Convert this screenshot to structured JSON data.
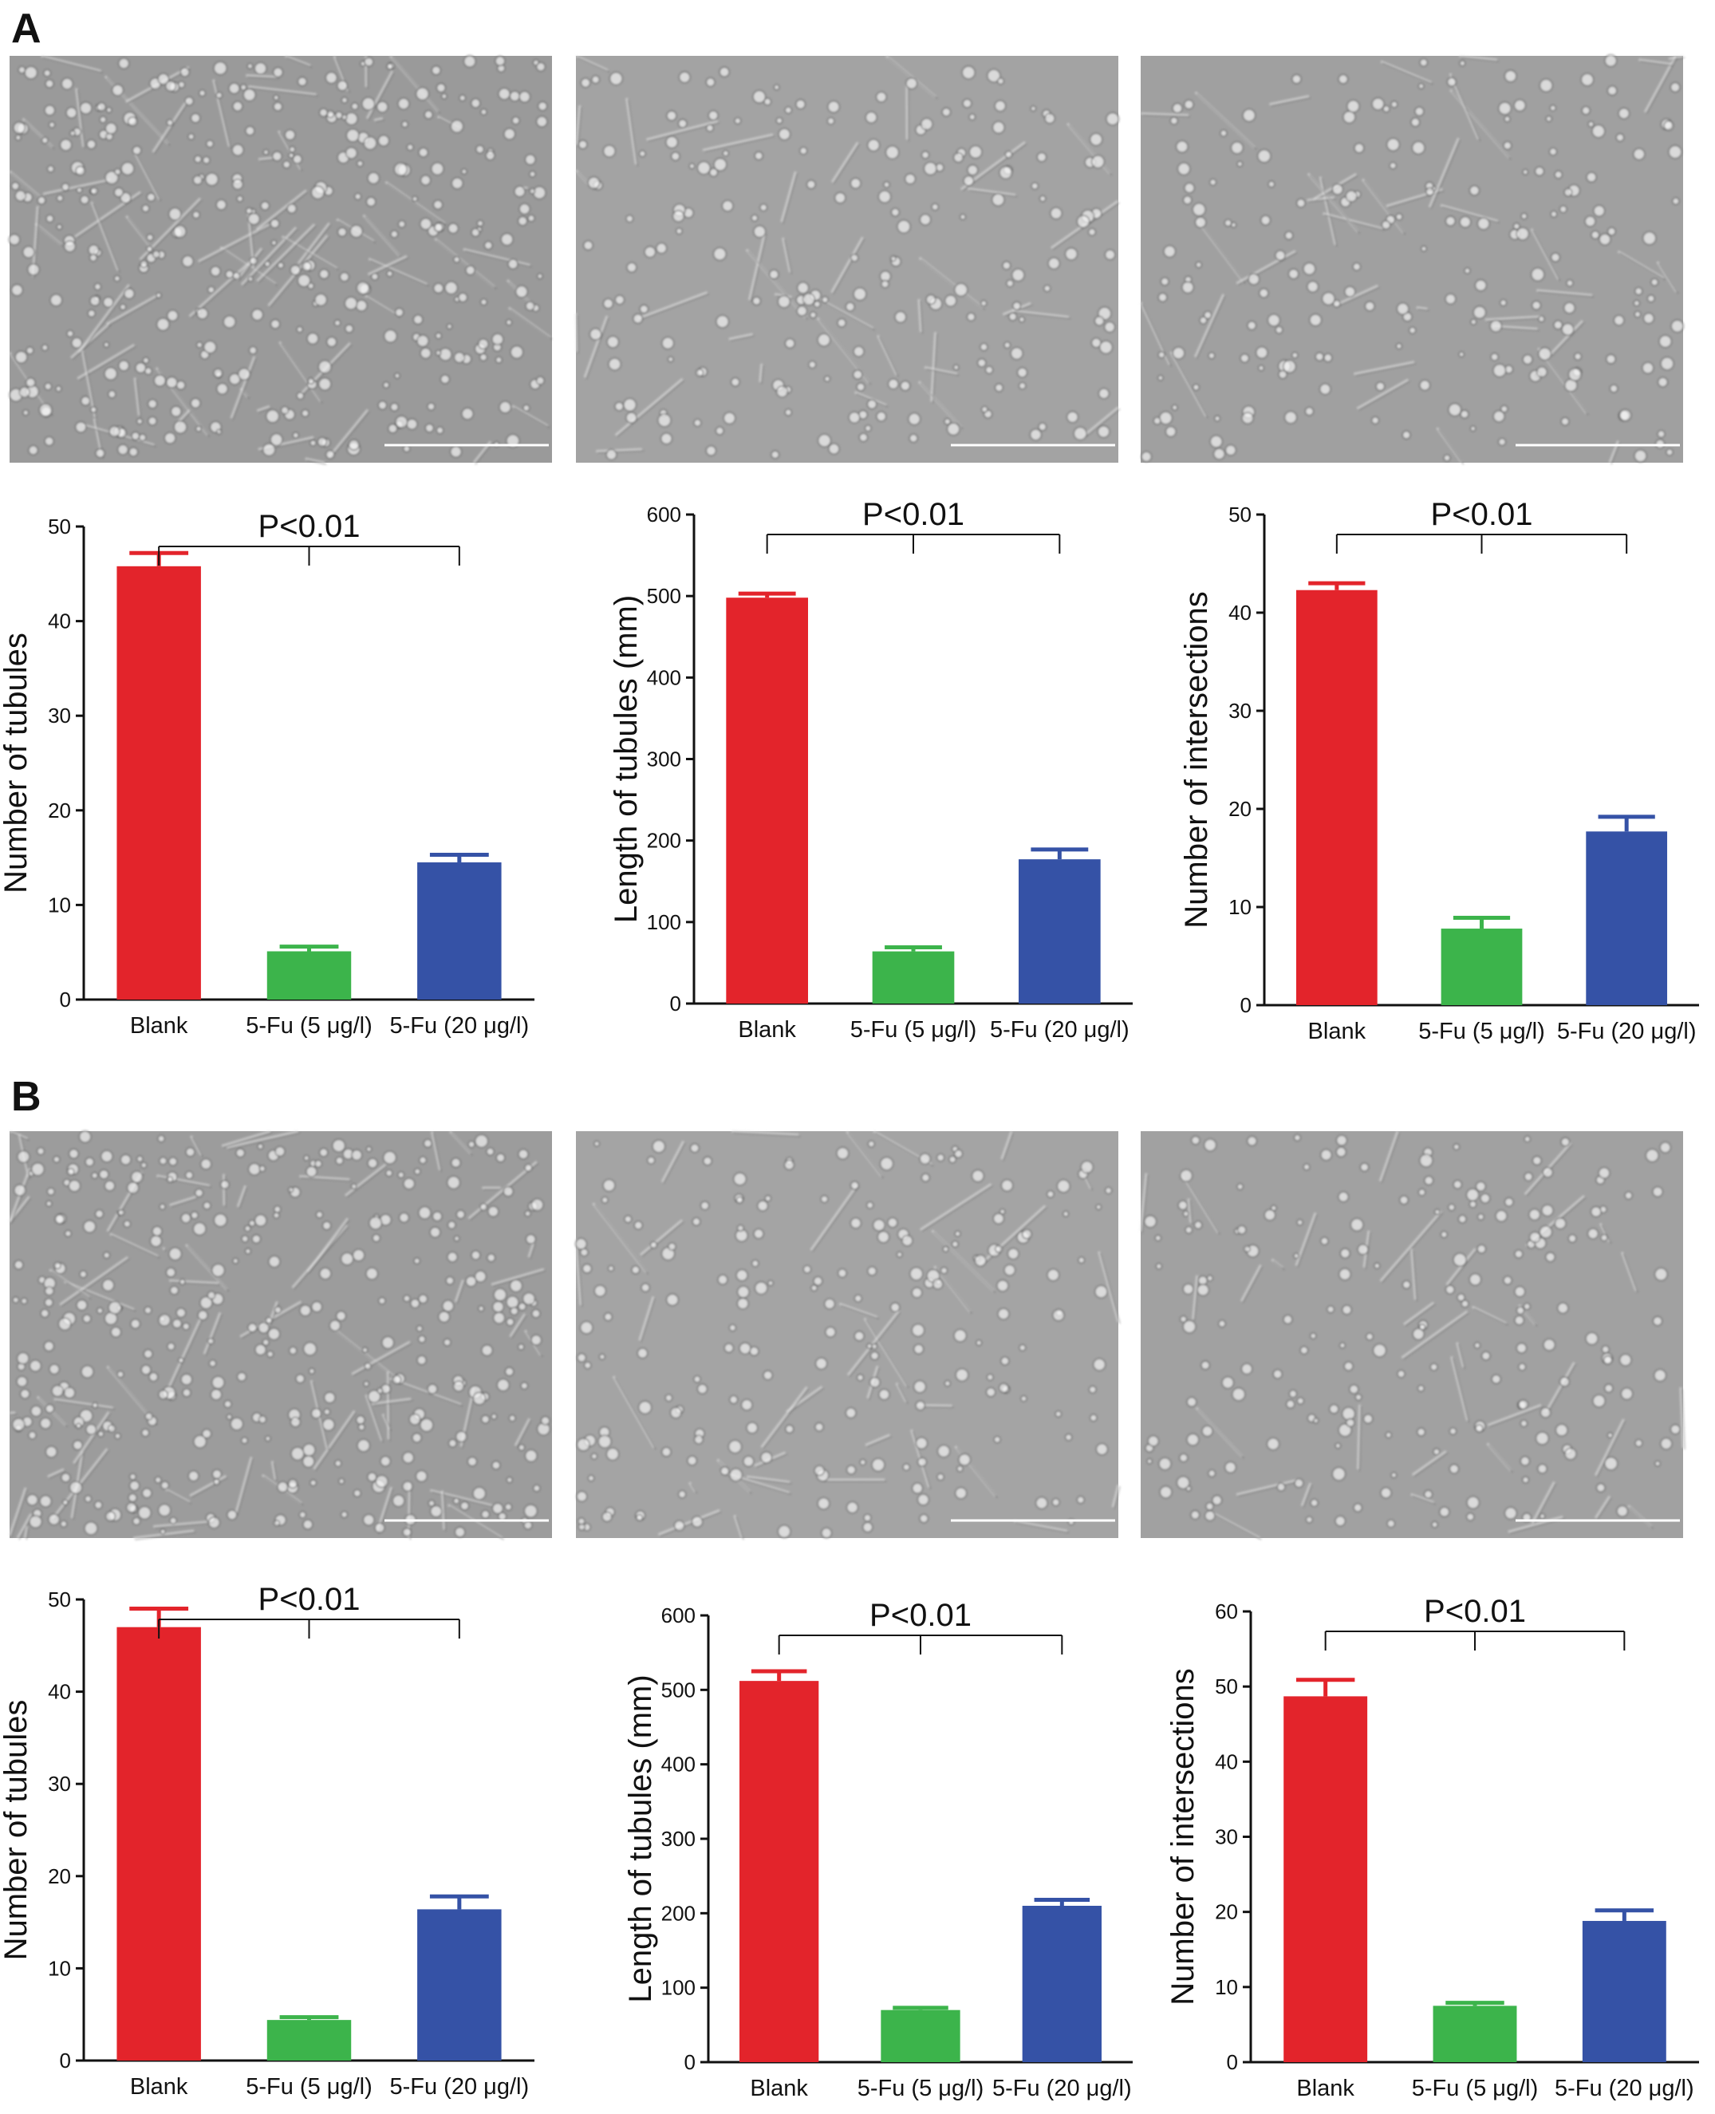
{
  "panels": [
    {
      "letter": "A",
      "images": [
        {
          "name": "micrograph-a-blank",
          "tone": "#9a9a9a"
        },
        {
          "name": "micrograph-a-5fu-5",
          "tone": "#a3a3a3"
        },
        {
          "name": "micrograph-a-5fu-20",
          "tone": "#a0a0a0"
        }
      ]
    },
    {
      "letter": "B",
      "images": [
        {
          "name": "micrograph-b-blank",
          "tone": "#9c9c9c"
        },
        {
          "name": "micrograph-b-5fu-5",
          "tone": "#a4a4a4"
        },
        {
          "name": "micrograph-b-5fu-20",
          "tone": "#a1a1a1"
        }
      ]
    }
  ],
  "colors": {
    "blank": "#e3242b",
    "low": "#3cb44b",
    "high": "#3552a6"
  },
  "chart_data": [
    {
      "type": "bar",
      "panel": "A",
      "categories": [
        "Blank",
        "5-Fu (5 μg/l)",
        "5-Fu (20 μg/l)"
      ],
      "values": [
        45.8,
        5.1,
        14.5
      ],
      "errors": [
        1.4,
        0.5,
        0.8
      ],
      "ylabel": "Number of tubules",
      "ylim": [
        0,
        50
      ],
      "yticks": [
        "0",
        "10",
        "20",
        "30",
        "40",
        "50"
      ],
      "annotation": "P<0.01"
    },
    {
      "type": "bar",
      "panel": "A",
      "categories": [
        "Blank",
        "5-Fu (5 μg/l)",
        "5-Fu (20 μg/l)"
      ],
      "values": [
        498,
        64,
        177
      ],
      "errors": [
        5,
        5,
        12
      ],
      "ylabel": "Length of tubules (mm)",
      "ylim": [
        0,
        600
      ],
      "yticks": [
        "0",
        "100",
        "200",
        "300",
        "400",
        "500",
        "600"
      ],
      "annotation": "P<0.01"
    },
    {
      "type": "bar",
      "panel": "A",
      "categories": [
        "Blank",
        "5-Fu (5 μg/l)",
        "5-Fu (20 μg/l)"
      ],
      "values": [
        42.3,
        7.8,
        17.7
      ],
      "errors": [
        0.7,
        1.1,
        1.5
      ],
      "ylabel": "Number of intersections",
      "ylim": [
        0,
        50
      ],
      "yticks": [
        "0",
        "10",
        "20",
        "30",
        "40",
        "50"
      ],
      "annotation": "P<0.01"
    },
    {
      "type": "bar",
      "panel": "B",
      "categories": [
        "Blank",
        "5-Fu (5 μg/l)",
        "5-Fu (20 μg/l)"
      ],
      "values": [
        47.0,
        4.4,
        16.4
      ],
      "errors": [
        2.0,
        0.3,
        1.4
      ],
      "ylabel": "Number of tubules",
      "ylim": [
        0,
        50
      ],
      "yticks": [
        "0",
        "10",
        "20",
        "30",
        "40",
        "50"
      ],
      "annotation": "P<0.01"
    },
    {
      "type": "bar",
      "panel": "B",
      "categories": [
        "Blank",
        "5-Fu (5 μg/l)",
        "5-Fu (20 μg/l)"
      ],
      "values": [
        512,
        70,
        210
      ],
      "errors": [
        13,
        3,
        8
      ],
      "ylabel": "Length of tubules (mm)",
      "ylim": [
        0,
        600
      ],
      "yticks": [
        "0",
        "100",
        "200",
        "300",
        "400",
        "500",
        "600"
      ],
      "annotation": "P<0.01"
    },
    {
      "type": "bar",
      "panel": "B",
      "categories": [
        "Blank",
        "5-Fu (5 μg/l)",
        "5-Fu (20 μg/l)"
      ],
      "values": [
        48.7,
        7.5,
        18.8
      ],
      "errors": [
        2.2,
        0.4,
        1.4
      ],
      "ylabel": "Number of intersections",
      "ylim": [
        0,
        60
      ],
      "yticks": [
        "0",
        "10",
        "20",
        "30",
        "40",
        "50",
        "60"
      ],
      "annotation": "P<0.01"
    }
  ]
}
